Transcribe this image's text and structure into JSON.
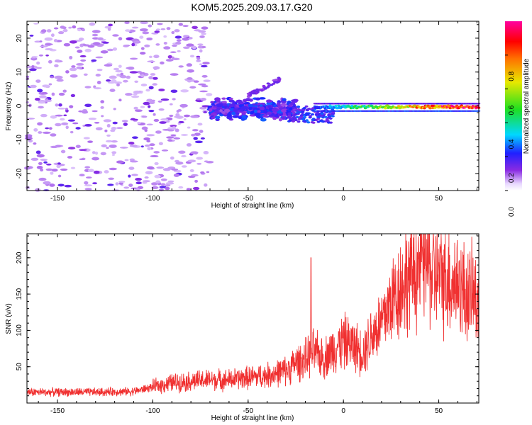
{
  "title": "KOM5.2025.209.03.17.G20",
  "chart_data": [
    {
      "type": "heatmap",
      "xlabel": "Height of straight line (km)",
      "ylabel": "Frequency (Hz)",
      "xlim": [
        -166,
        71
      ],
      "ylim": [
        -25,
        25
      ],
      "xticks": [
        -150,
        -100,
        -50,
        0,
        50
      ],
      "yticks": [
        -20,
        -10,
        0,
        10,
        20
      ],
      "colorbar": {
        "label": "Normalized spectral amplitude",
        "range": [
          0,
          1
        ],
        "ticks": [
          "0.0",
          "0.2",
          "0.4",
          "0.6",
          "0.8"
        ],
        "colormap": "rainbow (violet-blue-cyan-green-yellow-red-magenta)"
      },
      "features": [
        {
          "name": "noise",
          "x_range": [
            -166,
            -70
          ],
          "y_range": [
            -25,
            25
          ],
          "amplitude": [
            0.02,
            0.15
          ]
        },
        {
          "name": "dense cluster",
          "x_range": [
            -70,
            -25
          ],
          "y_center": -1,
          "amplitude": [
            0.05,
            0.25
          ]
        },
        {
          "name": "upward branch",
          "x_from": -50,
          "x_to": -33,
          "y_from": 3,
          "y_to": 8,
          "amplitude": 0.1
        },
        {
          "name": "main trace",
          "x_range": [
            -15,
            71
          ],
          "y_center": -0.5,
          "amplitude": [
            0.3,
            1.0
          ]
        }
      ]
    },
    {
      "type": "line",
      "xlabel": "Height of straight line (km)",
      "ylabel": "SNR (v/v)",
      "xlim": [
        -166,
        71
      ],
      "ylim": [
        0,
        233
      ],
      "xticks": [
        -150,
        -100,
        -50,
        0,
        50
      ],
      "yticks": [
        50,
        100,
        150,
        200
      ],
      "color": "#f03030",
      "series": [
        {
          "x": [
            -166,
            -150,
            -130,
            -110,
            -100,
            -90,
            -80,
            -70,
            -60,
            -50,
            -40,
            -30,
            -25,
            -20,
            -16,
            -10,
            -5,
            0,
            5,
            10,
            15,
            20,
            25,
            30,
            35,
            40,
            43,
            46,
            50,
            55,
            60,
            65,
            71
          ],
          "y": [
            15,
            15,
            15,
            16,
            22,
            28,
            30,
            32,
            32,
            35,
            38,
            45,
            55,
            60,
            70,
            62,
            75,
            85,
            80,
            70,
            95,
            110,
            140,
            160,
            175,
            190,
            205,
            180,
            175,
            170,
            165,
            150,
            145
          ],
          "peaks": [
            {
              "x": -17,
              "y": 200
            },
            {
              "x": 43,
              "y": 233
            },
            {
              "x": 53,
              "y": 218
            }
          ]
        }
      ]
    }
  ],
  "colors": {
    "line": "#f03030",
    "noise_light": "#c8a8f0",
    "noise_dark": "#7030e0"
  }
}
